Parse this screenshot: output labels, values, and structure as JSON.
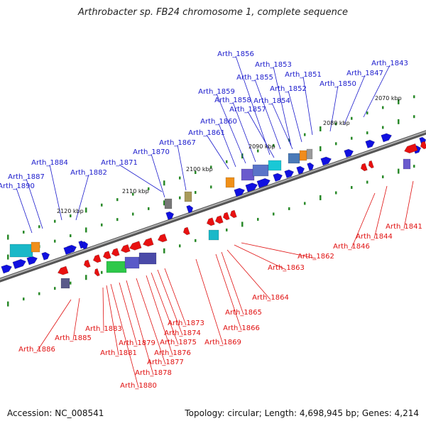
{
  "title": "Arthrobacter sp. FB24 chromosome 1, complete sequence",
  "footer": {
    "accession": "Accession: NC_008541",
    "summary": "Topology: circular; Length: 4,698,945 bp; Genes: 4,214"
  },
  "colors": {
    "forward_label": "#1a1acc",
    "reverse_label": "#e01010",
    "forward_gene": "#1010e0",
    "reverse_gene": "#e81010",
    "tick": "#2a8a2a",
    "backbone": "#808080"
  },
  "ticks": [
    "2070 kbp",
    "2080 kbp",
    "2090 kbp",
    "2100 kbp",
    "2110 kbp",
    "2120 kbp"
  ],
  "forward_genes": [
    "Arth_1843",
    "Arth_1847",
    "Arth_1850",
    "Arth_1851",
    "Arth_1852",
    "Arth_1853",
    "Arth_1854",
    "Arth_1855",
    "Arth_1856",
    "Arth_1857",
    "Arth_1858",
    "Arth_1859",
    "Arth_1860",
    "Arth_1861",
    "Arth_1867",
    "Arth_1870",
    "Arth_1871",
    "Arth_1882",
    "Arth_1884",
    "Arth_1887",
    "Arth_1890"
  ],
  "reverse_genes": [
    "Arth_1841",
    "Arth_1844",
    "Arth_1846",
    "Arth_1862",
    "Arth_1863",
    "Arth_1864",
    "Arth_1865",
    "Arth_1866",
    "Arth_1869",
    "Arth_1873",
    "Arth_1874",
    "Arth_1875",
    "Arth_1876",
    "Arth_1877",
    "Arth_1878",
    "Arth_1879",
    "Arth_1880",
    "Arth_1881",
    "Arth_1883",
    "Arth_1885",
    "Arth_1886"
  ]
}
